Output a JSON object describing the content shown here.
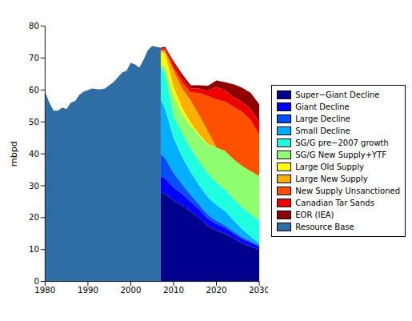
{
  "chart_data": {
    "type": "area",
    "stacked": true,
    "ylabel": "mbpd",
    "legend": "right",
    "x": [
      1980,
      1981,
      1982,
      1983,
      1984,
      1985,
      1986,
      1987,
      1988,
      1989,
      1990,
      1991,
      1992,
      1993,
      1994,
      1995,
      1996,
      1997,
      1998,
      1999,
      2000,
      2001,
      2002,
      2003,
      2004,
      2005,
      2006,
      2007,
      2008,
      2010,
      2012,
      2014,
      2016,
      2018,
      2020,
      2022,
      2024,
      2026,
      2028,
      2030
    ],
    "xlim": [
      1980,
      2030
    ],
    "xticks": [
      1980,
      1990,
      2000,
      2010,
      2020,
      2030
    ],
    "ylim": [
      0,
      80
    ],
    "yticks": [
      0,
      10,
      20,
      30,
      40,
      50,
      60,
      70,
      80
    ],
    "series": [
      {
        "name": "Super−Giant Decline",
        "color": "#00008f",
        "type": "stacked_area",
        "values": [
          null,
          null,
          null,
          null,
          null,
          null,
          null,
          null,
          null,
          null,
          null,
          null,
          null,
          null,
          null,
          null,
          null,
          null,
          null,
          null,
          null,
          null,
          null,
          null,
          null,
          null,
          null,
          28,
          27.5,
          25.5,
          24,
          22,
          20,
          17.5,
          16,
          15,
          13.5,
          12,
          11,
          10
        ]
      },
      {
        "name": "Giant Decline",
        "color": "#0000ff",
        "type": "stacked_area",
        "values": [
          null,
          null,
          null,
          null,
          null,
          null,
          null,
          null,
          null,
          null,
          null,
          null,
          null,
          null,
          null,
          null,
          null,
          null,
          null,
          null,
          null,
          null,
          null,
          null,
          null,
          null,
          null,
          5,
          4.8,
          4,
          3.5,
          3,
          2.6,
          2.2,
          2,
          1.8,
          1.6,
          1.4,
          1.2,
          1
        ]
      },
      {
        "name": "Large Decline",
        "color": "#0050ff",
        "type": "stacked_area",
        "values": [
          null,
          null,
          null,
          null,
          null,
          null,
          null,
          null,
          null,
          null,
          null,
          null,
          null,
          null,
          null,
          null,
          null,
          null,
          null,
          null,
          null,
          null,
          null,
          null,
          null,
          null,
          null,
          7,
          6.5,
          4.5,
          3,
          2.2,
          1.5,
          1.2,
          1,
          0.8,
          0.6,
          0.5,
          0.4,
          0.3
        ]
      },
      {
        "name": "Small Decline",
        "color": "#00afff",
        "type": "stacked_area",
        "values": [
          null,
          null,
          null,
          null,
          null,
          null,
          null,
          null,
          null,
          null,
          null,
          null,
          null,
          null,
          null,
          null,
          null,
          null,
          null,
          null,
          null,
          null,
          null,
          null,
          null,
          null,
          null,
          17,
          15.5,
          11,
          8.5,
          7,
          6,
          5.5,
          5,
          4.5,
          3.5,
          2.5,
          1.5,
          0.7
        ]
      },
      {
        "name": "SG/G pre−2007 growth",
        "color": "#20ffdf",
        "type": "stacked_area",
        "values": [
          null,
          null,
          null,
          null,
          null,
          null,
          null,
          null,
          null,
          null,
          null,
          null,
          null,
          null,
          null,
          null,
          null,
          null,
          null,
          null,
          null,
          null,
          null,
          null,
          null,
          null,
          null,
          10,
          11,
          7,
          7.5,
          7.5,
          7.5,
          7.5,
          7,
          6.8,
          6.6,
          6.8,
          7,
          7
        ]
      },
      {
        "name": "SG/G New Supply+YTF",
        "color": "#8fff70",
        "type": "stacked_area",
        "values": [
          null,
          null,
          null,
          null,
          null,
          null,
          null,
          null,
          null,
          null,
          null,
          null,
          null,
          null,
          null,
          null,
          null,
          null,
          null,
          null,
          null,
          null,
          null,
          null,
          null,
          null,
          null,
          1,
          2,
          6,
          6,
          7,
          8,
          9,
          11,
          12,
          12.5,
          13,
          13.5,
          14
        ]
      },
      {
        "name": "Large Old Supply",
        "color": "#ffff00",
        "type": "stacked_area",
        "values": [
          null,
          null,
          null,
          null,
          null,
          null,
          null,
          null,
          null,
          null,
          null,
          null,
          null,
          null,
          null,
          null,
          null,
          null,
          null,
          null,
          null,
          null,
          null,
          null,
          null,
          null,
          null,
          4,
          4,
          3,
          2,
          1,
          0.5,
          0.2,
          0,
          0,
          0,
          0,
          0,
          0
        ]
      },
      {
        "name": "Large New Supply",
        "color": "#ffaf00",
        "type": "stacked_area",
        "values": [
          null,
          null,
          null,
          null,
          null,
          null,
          null,
          null,
          null,
          null,
          null,
          null,
          null,
          null,
          null,
          null,
          null,
          null,
          null,
          null,
          null,
          null,
          null,
          null,
          null,
          null,
          null,
          0.5,
          1,
          5,
          6,
          7,
          6,
          4,
          0,
          0,
          0,
          0,
          0,
          0
        ]
      },
      {
        "name": "New Supply Unsanctioned",
        "color": "#ff5000",
        "type": "stacked_area",
        "values": [
          null,
          null,
          null,
          null,
          null,
          null,
          null,
          null,
          null,
          null,
          null,
          null,
          null,
          null,
          null,
          null,
          null,
          null,
          null,
          null,
          null,
          null,
          null,
          null,
          null,
          null,
          null,
          0,
          0.2,
          1,
          2,
          2.5,
          7,
          11,
          15,
          15.5,
          16.5,
          17,
          16,
          13
        ]
      },
      {
        "name": "Canadian Tar Sands",
        "color": "#ef0000",
        "type": "stacked_area",
        "values": [
          null,
          null,
          null,
          null,
          null,
          null,
          null,
          null,
          null,
          null,
          null,
          null,
          null,
          null,
          null,
          null,
          null,
          null,
          null,
          null,
          null,
          null,
          null,
          null,
          null,
          null,
          null,
          0.5,
          0.6,
          1.5,
          1.5,
          1.3,
          1.4,
          1.7,
          4,
          3.5,
          3,
          3,
          3.5,
          4
        ]
      },
      {
        "name": "EOR (IEA)",
        "color": "#8f0000",
        "type": "stacked_area",
        "values": [
          null,
          null,
          null,
          null,
          null,
          null,
          null,
          null,
          null,
          null,
          null,
          null,
          null,
          null,
          null,
          null,
          null,
          null,
          null,
          null,
          null,
          null,
          null,
          null,
          null,
          null,
          null,
          0.3,
          0.4,
          0.5,
          1,
          1,
          1,
          1.5,
          2,
          2.5,
          4,
          4.5,
          5,
          5.5
        ]
      },
      {
        "name": "Resource Base",
        "color": "#2f6ea5",
        "type": "area",
        "values": [
          59.5,
          56,
          53.5,
          53.5,
          54.5,
          54,
          56,
          56.5,
          58.5,
          59.5,
          60,
          60.5,
          60.3,
          60.2,
          60.5,
          61.5,
          62.5,
          64,
          65.5,
          66,
          68.5,
          68,
          67,
          69.5,
          72.5,
          73.8,
          73.5,
          73.2,
          null,
          null,
          null,
          null,
          null,
          null,
          null,
          null,
          null,
          null,
          null,
          null
        ]
      }
    ]
  }
}
